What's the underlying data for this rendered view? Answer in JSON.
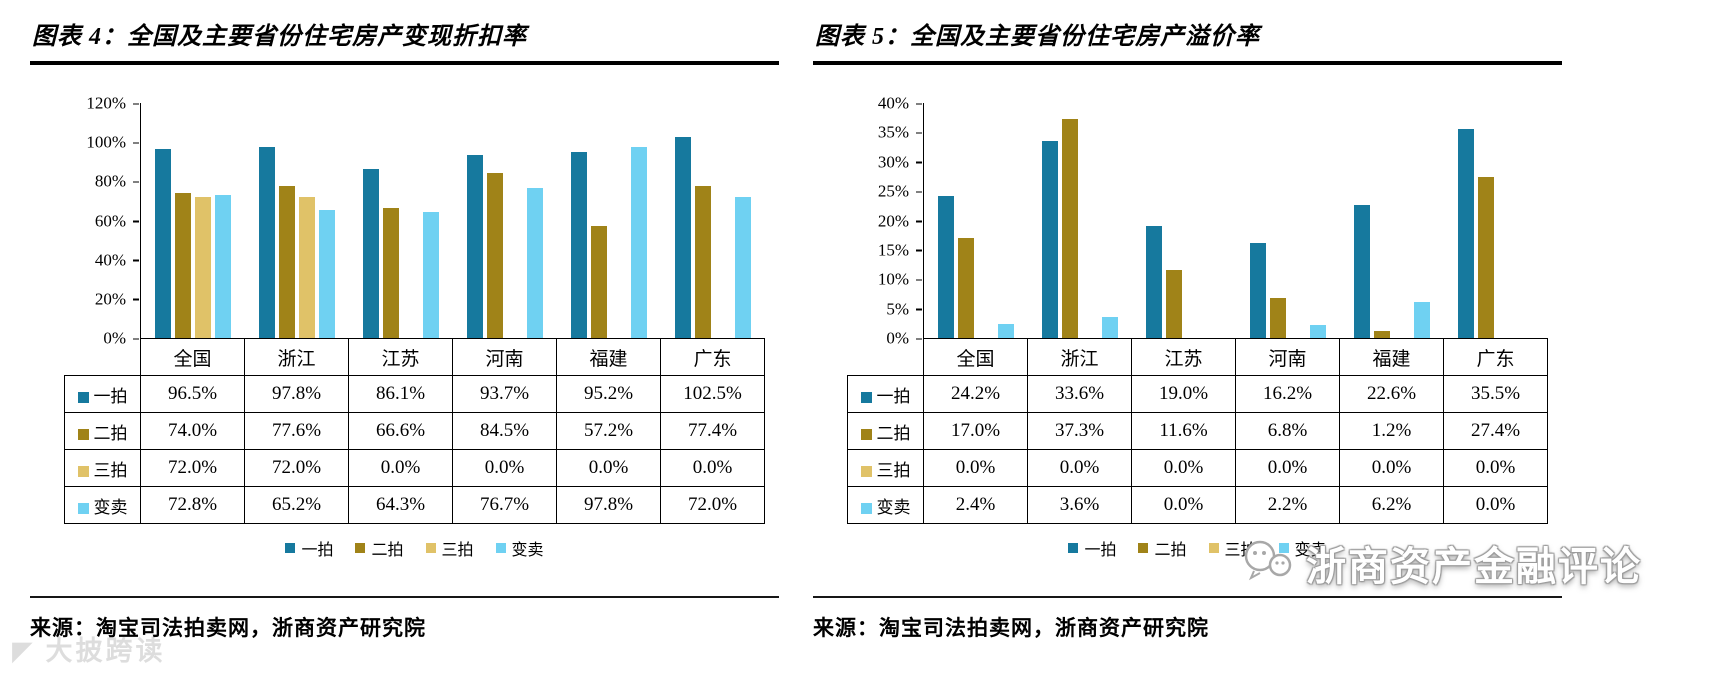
{
  "watermarks": {
    "bottom_left": "◤ 大披跨读",
    "bottom_right": "浙商资产金融评论"
  },
  "chart_data": [
    {
      "type": "bar",
      "title": "图表 4：全国及主要省份住宅房产变现折扣率",
      "source": "来源：淘宝司法拍卖网，浙商资产研究院",
      "categories": [
        "全国",
        "浙江",
        "江苏",
        "河南",
        "福建",
        "广东"
      ],
      "series": [
        {
          "name": "一拍",
          "color": "#16799e",
          "values": [
            96.5,
            97.8,
            86.1,
            93.7,
            95.2,
            102.5
          ]
        },
        {
          "name": "二拍",
          "color": "#a08318",
          "values": [
            74.0,
            77.6,
            66.6,
            84.5,
            57.2,
            77.4
          ]
        },
        {
          "name": "三拍",
          "color": "#e0c268",
          "values": [
            72.0,
            72.0,
            0.0,
            0.0,
            0.0,
            0.0
          ]
        },
        {
          "name": "变卖",
          "color": "#6fd1f2",
          "values": [
            72.8,
            65.2,
            64.3,
            76.7,
            97.8,
            72.0
          ]
        }
      ],
      "ylim": [
        0,
        120
      ],
      "ytick_step": 20,
      "ytick_suffix": "%",
      "value_suffix": "%",
      "grid": false,
      "legend_position": "bottom"
    },
    {
      "type": "bar",
      "title": "图表 5：全国及主要省份住宅房产溢价率",
      "source": "来源：淘宝司法拍卖网，浙商资产研究院",
      "categories": [
        "全国",
        "浙江",
        "江苏",
        "河南",
        "福建",
        "广东"
      ],
      "series": [
        {
          "name": "一拍",
          "color": "#16799e",
          "values": [
            24.2,
            33.6,
            19.0,
            16.2,
            22.6,
            35.5
          ]
        },
        {
          "name": "二拍",
          "color": "#a08318",
          "values": [
            17.0,
            37.3,
            11.6,
            6.8,
            1.2,
            27.4
          ]
        },
        {
          "name": "三拍",
          "color": "#e0c268",
          "values": [
            0.0,
            0.0,
            0.0,
            0.0,
            0.0,
            0.0
          ]
        },
        {
          "name": "变卖",
          "color": "#6fd1f2",
          "values": [
            2.4,
            3.6,
            0.0,
            2.2,
            6.2,
            0.0
          ]
        }
      ],
      "ylim": [
        0,
        40
      ],
      "ytick_step": 5,
      "ytick_suffix": "%",
      "value_suffix": "%",
      "grid": false,
      "legend_position": "bottom"
    }
  ]
}
